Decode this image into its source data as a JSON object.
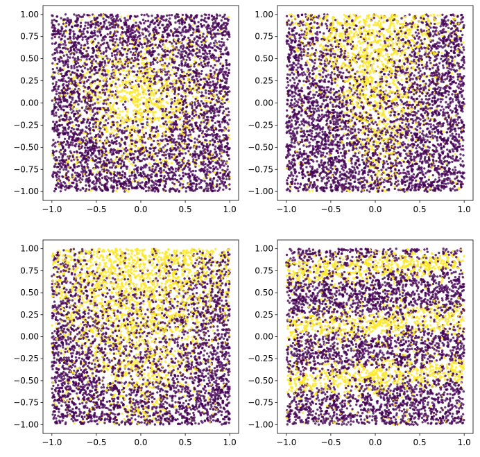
{
  "chart_data": [
    {
      "type": "scatter",
      "panel": "top-left",
      "xlim": [
        -1.1,
        1.1
      ],
      "ylim": [
        -1.1,
        1.1
      ],
      "xticks": [
        "-1.0",
        "-0.5",
        "0.0",
        "0.5",
        "1.0"
      ],
      "xtick_values": [
        -1,
        -0.5,
        0,
        0.5,
        1
      ],
      "yticks": [
        "-1.00",
        "-0.75",
        "-0.50",
        "-0.25",
        "0.00",
        "0.25",
        "0.50",
        "0.75",
        "1.00"
      ],
      "ytick_values": [
        -1,
        -0.75,
        -0.5,
        -0.25,
        0,
        0.25,
        0.5,
        0.75,
        1
      ],
      "point_domain": {
        "x": [
          -1,
          1
        ],
        "y": [
          -1,
          1
        ]
      },
      "pattern": "yellow circular blob centered at origin",
      "grid": false
    },
    {
      "type": "scatter",
      "panel": "top-right",
      "xlim": [
        -1.1,
        1.1
      ],
      "ylim": [
        -1.1,
        1.1
      ],
      "xticks": [
        "-1.0",
        "-0.5",
        "0.0",
        "0.5",
        "1.0"
      ],
      "xtick_values": [
        -1,
        -0.5,
        0,
        0.5,
        1
      ],
      "yticks": [
        "-1.00",
        "-0.75",
        "-0.50",
        "-0.25",
        "0.00",
        "0.25",
        "0.50",
        "0.75",
        "1.00"
      ],
      "ytick_values": [
        -1,
        -0.75,
        -0.5,
        -0.25,
        0,
        0.25,
        0.5,
        0.75,
        1
      ],
      "point_domain": {
        "x": [
          -1,
          1
        ],
        "y": [
          -1,
          1
        ]
      },
      "pattern": "yellow narrow cone opening upward from center bottom",
      "grid": false
    },
    {
      "type": "scatter",
      "panel": "bottom-left",
      "xlim": [
        -1.1,
        1.1
      ],
      "ylim": [
        -1.1,
        1.1
      ],
      "xticks": [
        "-1.0",
        "-0.5",
        "0.0",
        "0.5",
        "1.0"
      ],
      "xtick_values": [
        -1,
        -0.5,
        0,
        0.5,
        1
      ],
      "yticks": [
        "-1.00",
        "-0.75",
        "-0.50",
        "-0.25",
        "0.00",
        "0.25",
        "0.50",
        "0.75",
        "1.00"
      ],
      "ytick_values": [
        -1,
        -0.75,
        -0.5,
        -0.25,
        0,
        0.25,
        0.5,
        0.75,
        1
      ],
      "point_domain": {
        "x": [
          -1,
          1
        ],
        "y": [
          -1,
          1
        ]
      },
      "pattern": "yellow wide cone opening upward, full width at top",
      "grid": false
    },
    {
      "type": "scatter",
      "panel": "bottom-right",
      "xlim": [
        -1.1,
        1.1
      ],
      "ylim": [
        -1.1,
        1.1
      ],
      "xticks": [
        "-1.0",
        "-0.5",
        "0.0",
        "0.5",
        "1.0"
      ],
      "xtick_values": [
        -1,
        -0.5,
        0,
        0.5,
        1
      ],
      "yticks": [
        "-1.00",
        "-0.75",
        "-0.50",
        "-0.25",
        "0.00",
        "0.25",
        "0.50",
        "0.75",
        "1.00"
      ],
      "ytick_values": [
        -1,
        -0.75,
        -0.5,
        -0.25,
        0,
        0.25,
        0.5,
        0.75,
        1
      ],
      "point_domain": {
        "x": [
          -1,
          1
        ],
        "y": [
          -1,
          1
        ]
      },
      "pattern": "three yellow horizontal bands near y=0.8, 0.15, -0.45",
      "grid": false
    }
  ],
  "colors": {
    "class_0": "#440154",
    "class_1": "#fde725"
  }
}
